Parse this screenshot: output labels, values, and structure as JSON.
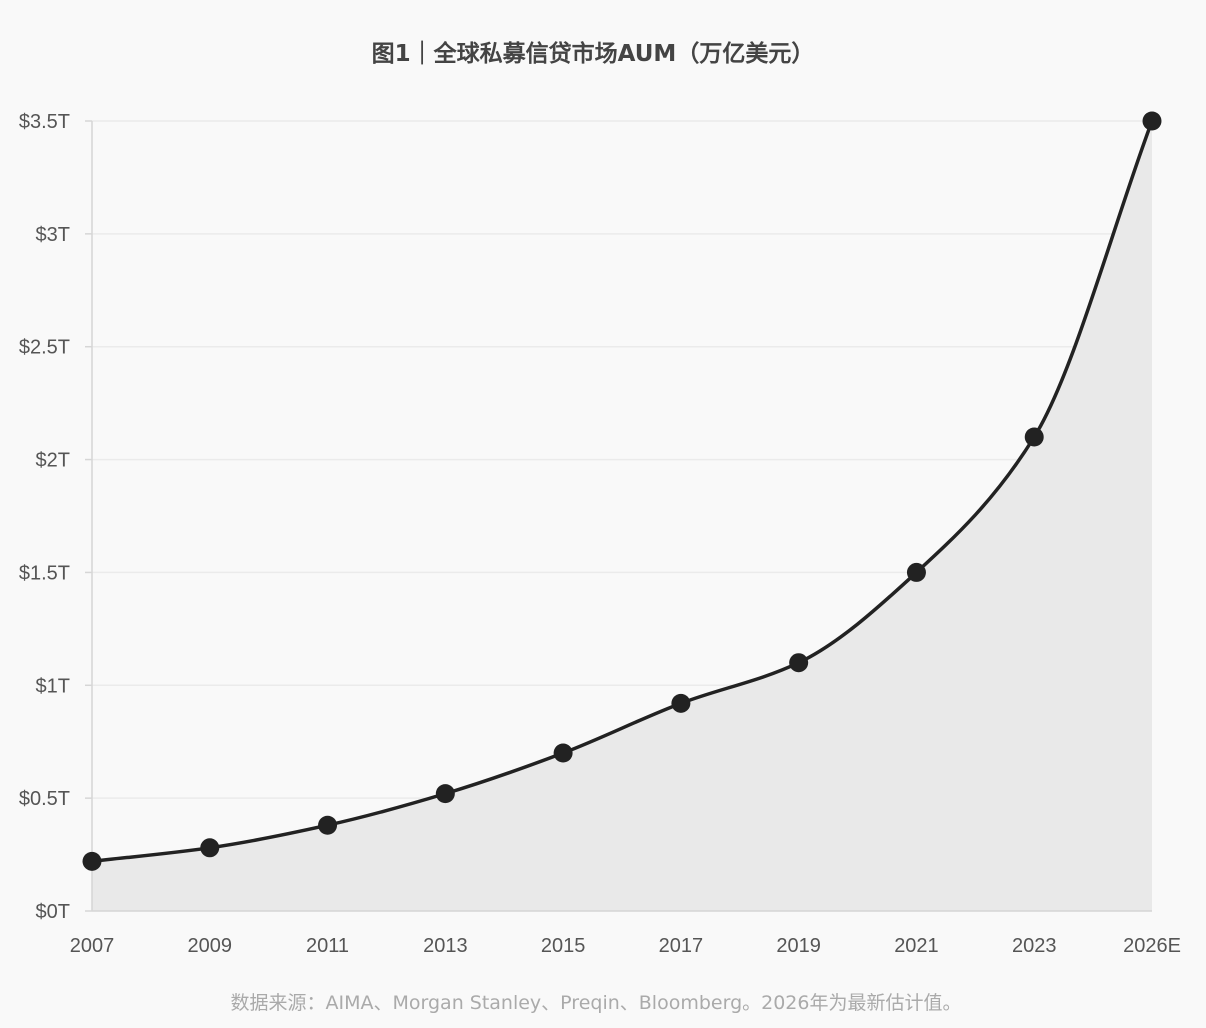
{
  "chart_data": {
    "type": "area",
    "title": "图1｜全球私募信贷市场AUM（万亿美元）",
    "categories": [
      "2007",
      "2009",
      "2011",
      "2013",
      "2015",
      "2017",
      "2019",
      "2021",
      "2023",
      "2026E"
    ],
    "series": [
      {
        "values": [
          0.22,
          0.28,
          0.38,
          0.52,
          0.7,
          0.92,
          1.1,
          1.5,
          2.1,
          3.5
        ]
      }
    ],
    "yticks": [
      0,
      0.5,
      1,
      1.5,
      2,
      2.5,
      3,
      3.5
    ],
    "ytick_labels": [
      "$0T",
      "$0.5T",
      "$1T",
      "$1.5T",
      "$2T",
      "$2.5T",
      "$3T",
      "$3.5T"
    ],
    "ylim": [
      0,
      3.5
    ],
    "xlabel": "",
    "ylabel": "",
    "grid": true,
    "legend": "none",
    "colors": {
      "line": "#222222",
      "marker": "#222222",
      "fill": "#e9e9e9",
      "grid": "#ebebeb",
      "axis": "#d6d6d6"
    }
  },
  "source_note": "数据来源：AIMA、Morgan Stanley、Preqin、Bloomberg。2026年为最新估计值。"
}
